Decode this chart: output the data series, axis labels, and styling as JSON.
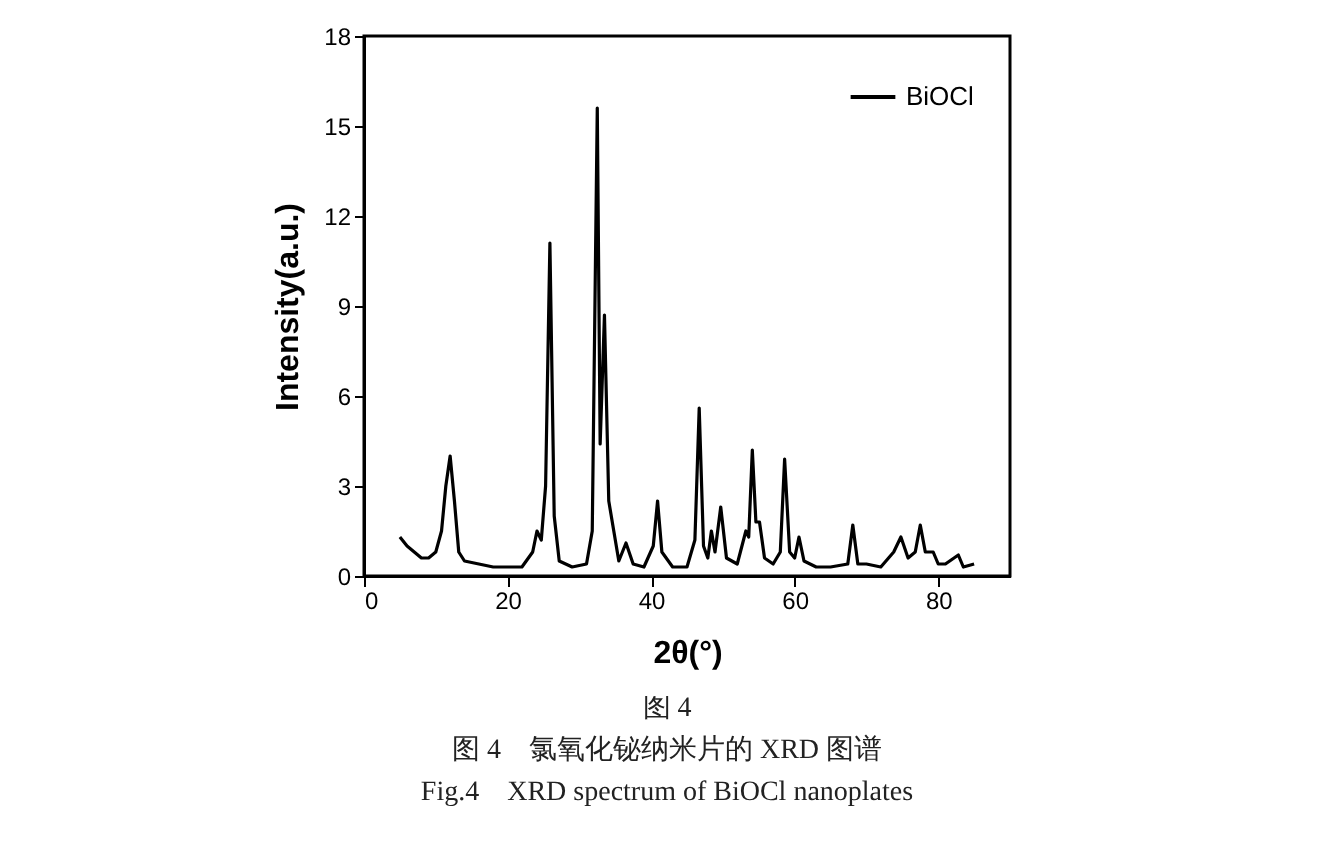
{
  "chart_data": {
    "type": "line",
    "xlabel": "2θ(°)",
    "ylabel": "Intensity(a.u.)",
    "xlim": [
      0,
      90
    ],
    "xticks": [
      0,
      20,
      40,
      60,
      80
    ],
    "ylim": [
      0,
      18
    ],
    "yticks": [
      0,
      3,
      6,
      9,
      12,
      15,
      18
    ],
    "legend": "top right",
    "grid": false,
    "line_style": "solid",
    "x": [
      5,
      6,
      7,
      8,
      9,
      10,
      10.8,
      11.4,
      12,
      12.6,
      13.2,
      14,
      16,
      18,
      20,
      22,
      23.5,
      24.1,
      24.7,
      25.3,
      25.9,
      26.5,
      27.2,
      29,
      31,
      31.8,
      32.5,
      32.9,
      33.5,
      34.1,
      34.8,
      35.5,
      36.5,
      37.5,
      39,
      40.3,
      40.9,
      41.5,
      43,
      45,
      46.1,
      46.7,
      47.3,
      47.9,
      48.4,
      48.9,
      49.7,
      50.5,
      52,
      53.2,
      53.6,
      54.1,
      54.6,
      55.1,
      55.8,
      57,
      58,
      58.6,
      59.3,
      60,
      60.6,
      61.3,
      63,
      65,
      67.4,
      68.1,
      68.8,
      70,
      72,
      73.8,
      74.8,
      75.8,
      76.8,
      77.5,
      78.2,
      79.3,
      80,
      81,
      82.8,
      83.5,
      85
    ],
    "series": [
      {
        "name": "BiOCl",
        "color": "#000000",
        "values": [
          1.3,
          1.0,
          0.8,
          0.6,
          0.6,
          0.8,
          1.5,
          3.0,
          4.0,
          2.5,
          0.8,
          0.5,
          0.4,
          0.3,
          0.3,
          0.3,
          0.8,
          1.5,
          1.2,
          3,
          11.1,
          2,
          0.5,
          0.3,
          0.4,
          1.5,
          15.6,
          4.4,
          8.7,
          2.5,
          1.5,
          0.5,
          1.1,
          0.4,
          0.3,
          1,
          2.5,
          0.8,
          0.3,
          0.3,
          1.2,
          5.6,
          1,
          0.6,
          1.5,
          0.8,
          2.3,
          0.6,
          0.4,
          1.5,
          1.3,
          4.2,
          1.8,
          1.8,
          0.6,
          0.4,
          0.8,
          3.9,
          0.8,
          0.6,
          1.3,
          0.5,
          0.3,
          0.3,
          0.4,
          1.7,
          0.4,
          0.4,
          0.3,
          0.8,
          1.3,
          0.6,
          0.8,
          1.7,
          0.8,
          0.8,
          0.4,
          0.4,
          0.7,
          0.3,
          0.4
        ]
      }
    ],
    "annotations": [
      "图 4",
      "图 4　氯氧化铋纳米片的 XRD 图谱",
      "Fig.4　XRD spectrum of BiOCl nanoplates"
    ]
  }
}
